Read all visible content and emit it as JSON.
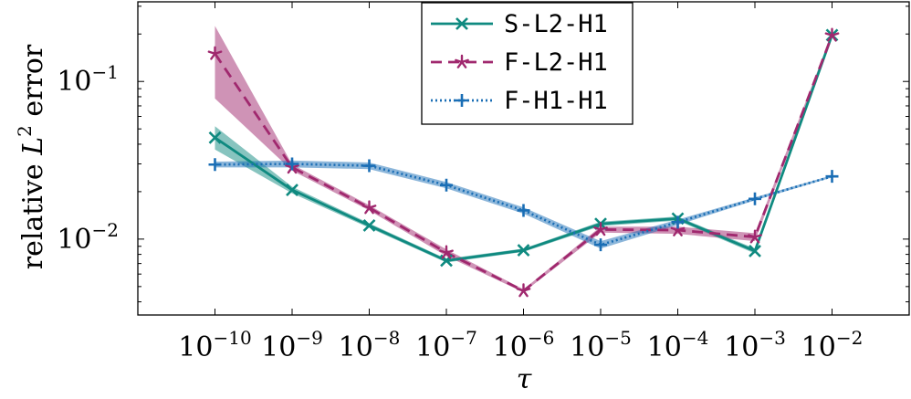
{
  "chart_data": {
    "type": "line",
    "title": "",
    "xlabel": "τ",
    "ylabel": {
      "prefix": "relative ",
      "var": "L",
      "sup": "2",
      "suffix": " error"
    },
    "x_scale": "log",
    "y_scale": "log",
    "x": [
      1e-10,
      1e-09,
      1e-08,
      1e-07,
      1e-06,
      1e-05,
      0.0001,
      0.001,
      0.01
    ],
    "x_ticks": [
      {
        "base": "10",
        "exp": "−10"
      },
      {
        "base": "10",
        "exp": "−9"
      },
      {
        "base": "10",
        "exp": "−8"
      },
      {
        "base": "10",
        "exp": "−7"
      },
      {
        "base": "10",
        "exp": "−6"
      },
      {
        "base": "10",
        "exp": "−5"
      },
      {
        "base": "10",
        "exp": "−4"
      },
      {
        "base": "10",
        "exp": "−3"
      },
      {
        "base": "10",
        "exp": "−2"
      }
    ],
    "y_ticks": [
      {
        "value": 0.1,
        "base": "10",
        "exp": "−1"
      },
      {
        "value": 0.01,
        "base": "10",
        "exp": "−2"
      }
    ],
    "xlim": [
      1e-11,
      0.1
    ],
    "ylim": [
      0.0033,
      0.32
    ],
    "grid": false,
    "legend_position": "top-center",
    "series": [
      {
        "name": "S-L2-H1",
        "color": "#0f8a80",
        "line_style": "solid",
        "marker": "x",
        "values": [
          0.044,
          0.0205,
          0.0122,
          0.0073,
          0.0085,
          0.0125,
          0.0135,
          0.0084,
          0.197
        ],
        "band_lower": [
          0.037,
          0.0195,
          0.0118,
          0.0071,
          0.0083,
          0.0121,
          0.0131,
          0.0081,
          0.19
        ],
        "band_upper": [
          0.052,
          0.0215,
          0.0126,
          0.0075,
          0.0087,
          0.0129,
          0.0139,
          0.0087,
          0.204
        ]
      },
      {
        "name": "F-L2-H1",
        "color": "#a0286e",
        "line_style": "dashed",
        "marker": "star",
        "values": [
          0.15,
          0.0285,
          0.0158,
          0.0082,
          0.0047,
          0.0115,
          0.0114,
          0.0103,
          0.196
        ],
        "band_lower": [
          0.078,
          0.0272,
          0.0152,
          0.0078,
          0.0046,
          0.011,
          0.0108,
          0.0097,
          0.19
        ],
        "band_upper": [
          0.225,
          0.0298,
          0.0164,
          0.0086,
          0.0048,
          0.012,
          0.012,
          0.0109,
          0.202
        ]
      },
      {
        "name": "F-H1-H1",
        "color": "#1a6eb5",
        "line_style": "dotted",
        "marker": "plus",
        "values": [
          0.0297,
          0.03,
          0.0292,
          0.022,
          0.0152,
          0.0092,
          0.0128,
          0.018,
          0.025
        ],
        "band_lower": [
          0.0285,
          0.0285,
          0.0278,
          0.021,
          0.0145,
          0.0087,
          0.0123,
          0.0176,
          0.0246
        ],
        "band_upper": [
          0.031,
          0.0315,
          0.0306,
          0.023,
          0.0159,
          0.0097,
          0.0133,
          0.0184,
          0.0254
        ]
      }
    ]
  }
}
